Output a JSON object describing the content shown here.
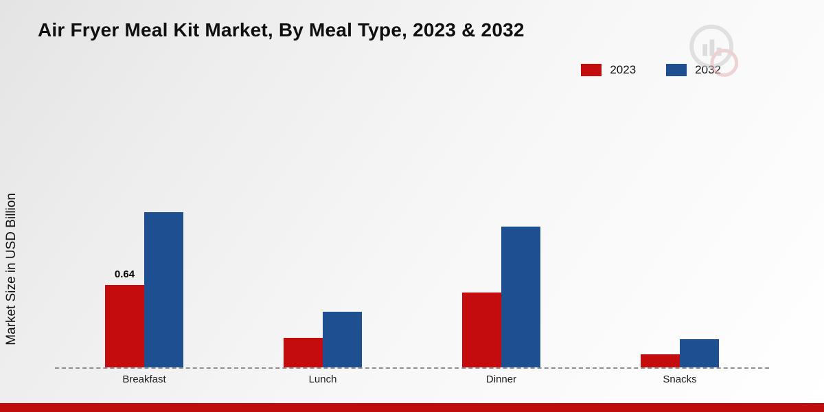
{
  "title": "Air Fryer Meal Kit Market, By Meal Type, 2023 & 2032",
  "ylabel": "Market Size in USD Billion",
  "chart_data": {
    "type": "bar",
    "title": "Air Fryer Meal Kit Market, By Meal Type, 2023 & 2032",
    "categories": [
      "Breakfast",
      "Lunch",
      "Dinner",
      "Snacks"
    ],
    "series": [
      {
        "name": "2023",
        "color": "#c40b0e",
        "values": [
          0.64,
          0.23,
          0.58,
          0.1
        ]
      },
      {
        "name": "2032",
        "color": "#1d4f91",
        "values": [
          1.2,
          0.43,
          1.09,
          0.22
        ]
      }
    ],
    "annotations": [
      {
        "series": "2023",
        "category": "Breakfast",
        "text": "0.64"
      }
    ],
    "xlabel": "",
    "ylabel": "Market Size in USD Billion",
    "ylim": [
      0,
      1.4
    ],
    "grid": false,
    "baseline_style": "dashed",
    "legend_position": "top-right"
  },
  "accent": {
    "footer_bar_color": "#bf0d0d"
  }
}
